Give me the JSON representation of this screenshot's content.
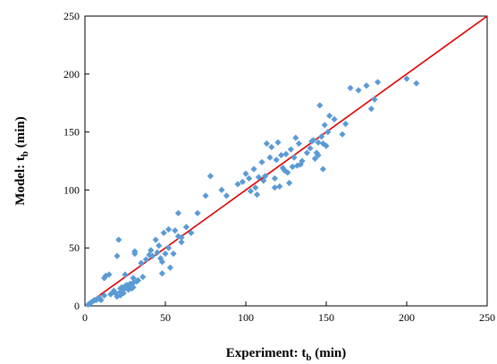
{
  "chart_data": {
    "type": "scatter",
    "title": "",
    "xlabel": {
      "main": "Experiment: t",
      "sub": "b",
      "unit": " (min)"
    },
    "ylabel": {
      "main": "Model: t",
      "sub": "b",
      "unit": " (min)"
    },
    "xlim": [
      0,
      250
    ],
    "ylim": [
      0,
      250
    ],
    "xticks": [
      0,
      50,
      100,
      150,
      200,
      250
    ],
    "yticks": [
      0,
      50,
      100,
      150,
      200,
      250
    ],
    "grid": false,
    "legend": "none",
    "colors": {
      "points": "#5b9bd5",
      "line": "#e00000",
      "axes": "#000000"
    },
    "reference_line": {
      "x": [
        0,
        250
      ],
      "y": [
        0,
        250
      ]
    },
    "series": [
      {
        "x": [
          2,
          3,
          4,
          5,
          6,
          7,
          8,
          9,
          10,
          12,
          13,
          15,
          16,
          18,
          19,
          20,
          21,
          22,
          22,
          23,
          24,
          25,
          26,
          27,
          28,
          29,
          30,
          30,
          31,
          32,
          33,
          35,
          38,
          40,
          42,
          44,
          45,
          47,
          48,
          49,
          50,
          52,
          53,
          55,
          58,
          60,
          70,
          75,
          78,
          88,
          95,
          98,
          100,
          102,
          103,
          105,
          106,
          107,
          108,
          110,
          111,
          112,
          113,
          115,
          116,
          118,
          119,
          120,
          121,
          122,
          123,
          124,
          125,
          126,
          127,
          128,
          129,
          130,
          131,
          132,
          133,
          135,
          138,
          140,
          141,
          142,
          143,
          144,
          145,
          146,
          147,
          148,
          149,
          150,
          151,
          152,
          155,
          160,
          165,
          170,
          175,
          178,
          180,
          182,
          200,
          206,
          20,
          24,
          27,
          30,
          33,
          36,
          41,
          46,
          22,
          25,
          29,
          31,
          48,
          52,
          56,
          58,
          63,
          66,
          12,
          16,
          18,
          60,
          85,
          118,
          134,
          145,
          148,
          162
        ],
        "y": [
          1,
          2,
          3,
          4,
          5,
          5,
          6,
          7,
          5,
          9,
          26,
          27,
          10,
          13,
          11,
          43,
          57,
          15,
          9,
          16,
          14,
          17,
          18,
          16,
          19,
          15,
          20,
          24,
          47,
          21,
          22,
          37,
          40,
          44,
          43,
          57,
          46,
          41,
          28,
          63,
          45,
          66,
          33,
          45,
          60,
          59,
          80,
          95,
          112,
          95,
          105,
          107,
          114,
          110,
          99,
          118,
          102,
          96,
          111,
          124,
          108,
          112,
          140,
          128,
          137,
          110,
          126,
          141,
          103,
          130,
          119,
          117,
          131,
          115,
          106,
          135,
          120,
          128,
          145,
          121,
          140,
          125,
          132,
          136,
          142,
          143,
          127,
          132,
          141,
          173,
          146,
          140,
          156,
          138,
          150,
          164,
          161,
          148,
          188,
          186,
          190,
          170,
          178,
          193,
          196,
          192,
          8,
          11,
          14,
          16,
          22,
          25,
          48,
          52,
          12,
          27,
          18,
          45,
          38,
          50,
          65,
          80,
          68,
          63,
          24,
          10,
          12,
          55,
          100,
          102,
          122,
          130,
          118,
          157
        ]
      }
    ]
  }
}
